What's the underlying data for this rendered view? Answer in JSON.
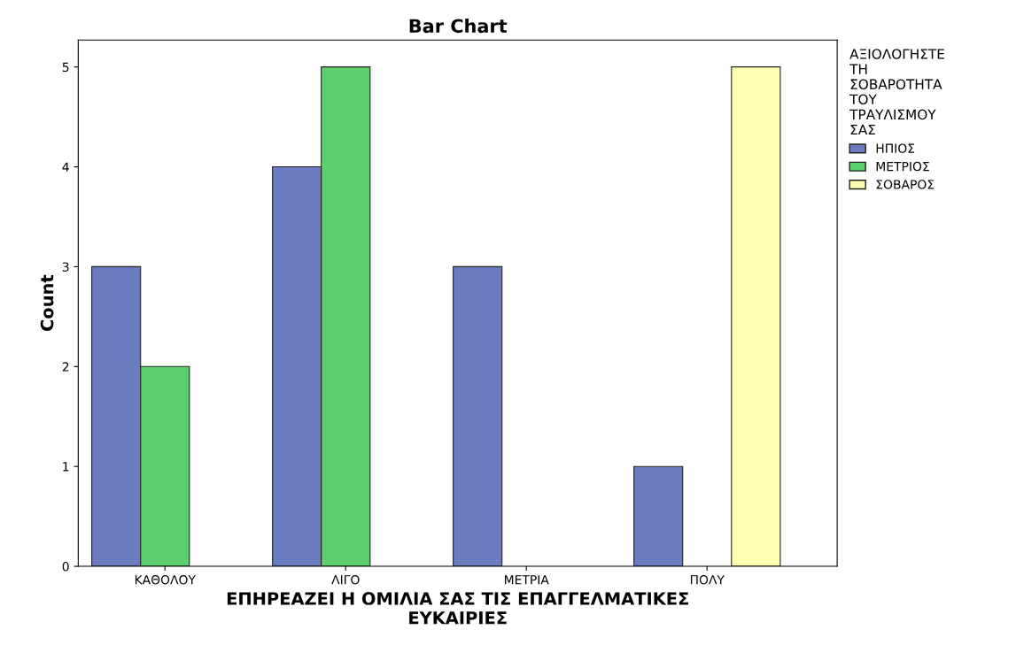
{
  "chart_data": {
    "type": "bar",
    "title": "Bar Chart",
    "xlabel": "ΕΠΗΡΕΑΖΕΙ Η ΟΜΙΛΙΑ ΣΑΣ ΤΙΣ ΕΠΑΓΓΕΛΜΑΤΙΚΕΣ\nΕΥΚΑΙΡΙΕΣ",
    "ylabel": "Count",
    "legend_title": "ΑΞΙΟΛΟΓΗΣΤΕ\nΤΗ\nΣΟΒΑΡΟΤΗΤΑ\nΤΟΥ\nΤΡΑΥΛΙΣΜΟΥ\nΣΑΣ",
    "categories": [
      "ΚΑΘΟΛΟΥ",
      "ΛΙΓΟ",
      "ΜΕΤΡΙΑ",
      "ΠΟΛΥ"
    ],
    "series": [
      {
        "name": "ΗΠΙΟΣ",
        "color": "#6a7bbf",
        "values": [
          3,
          4,
          3,
          1
        ]
      },
      {
        "name": "ΜΕΤΡΙΟΣ",
        "color": "#5ccf6e",
        "values": [
          2,
          5,
          null,
          null
        ]
      },
      {
        "name": "ΣΟΒΑΡΟΣ",
        "color": "#ffffb0",
        "values": [
          null,
          null,
          null,
          5
        ]
      }
    ],
    "ylim": [
      0,
      5.27
    ],
    "yticks": [
      0,
      1,
      2,
      3,
      4,
      5
    ],
    "grid": false,
    "legend": "top right"
  }
}
